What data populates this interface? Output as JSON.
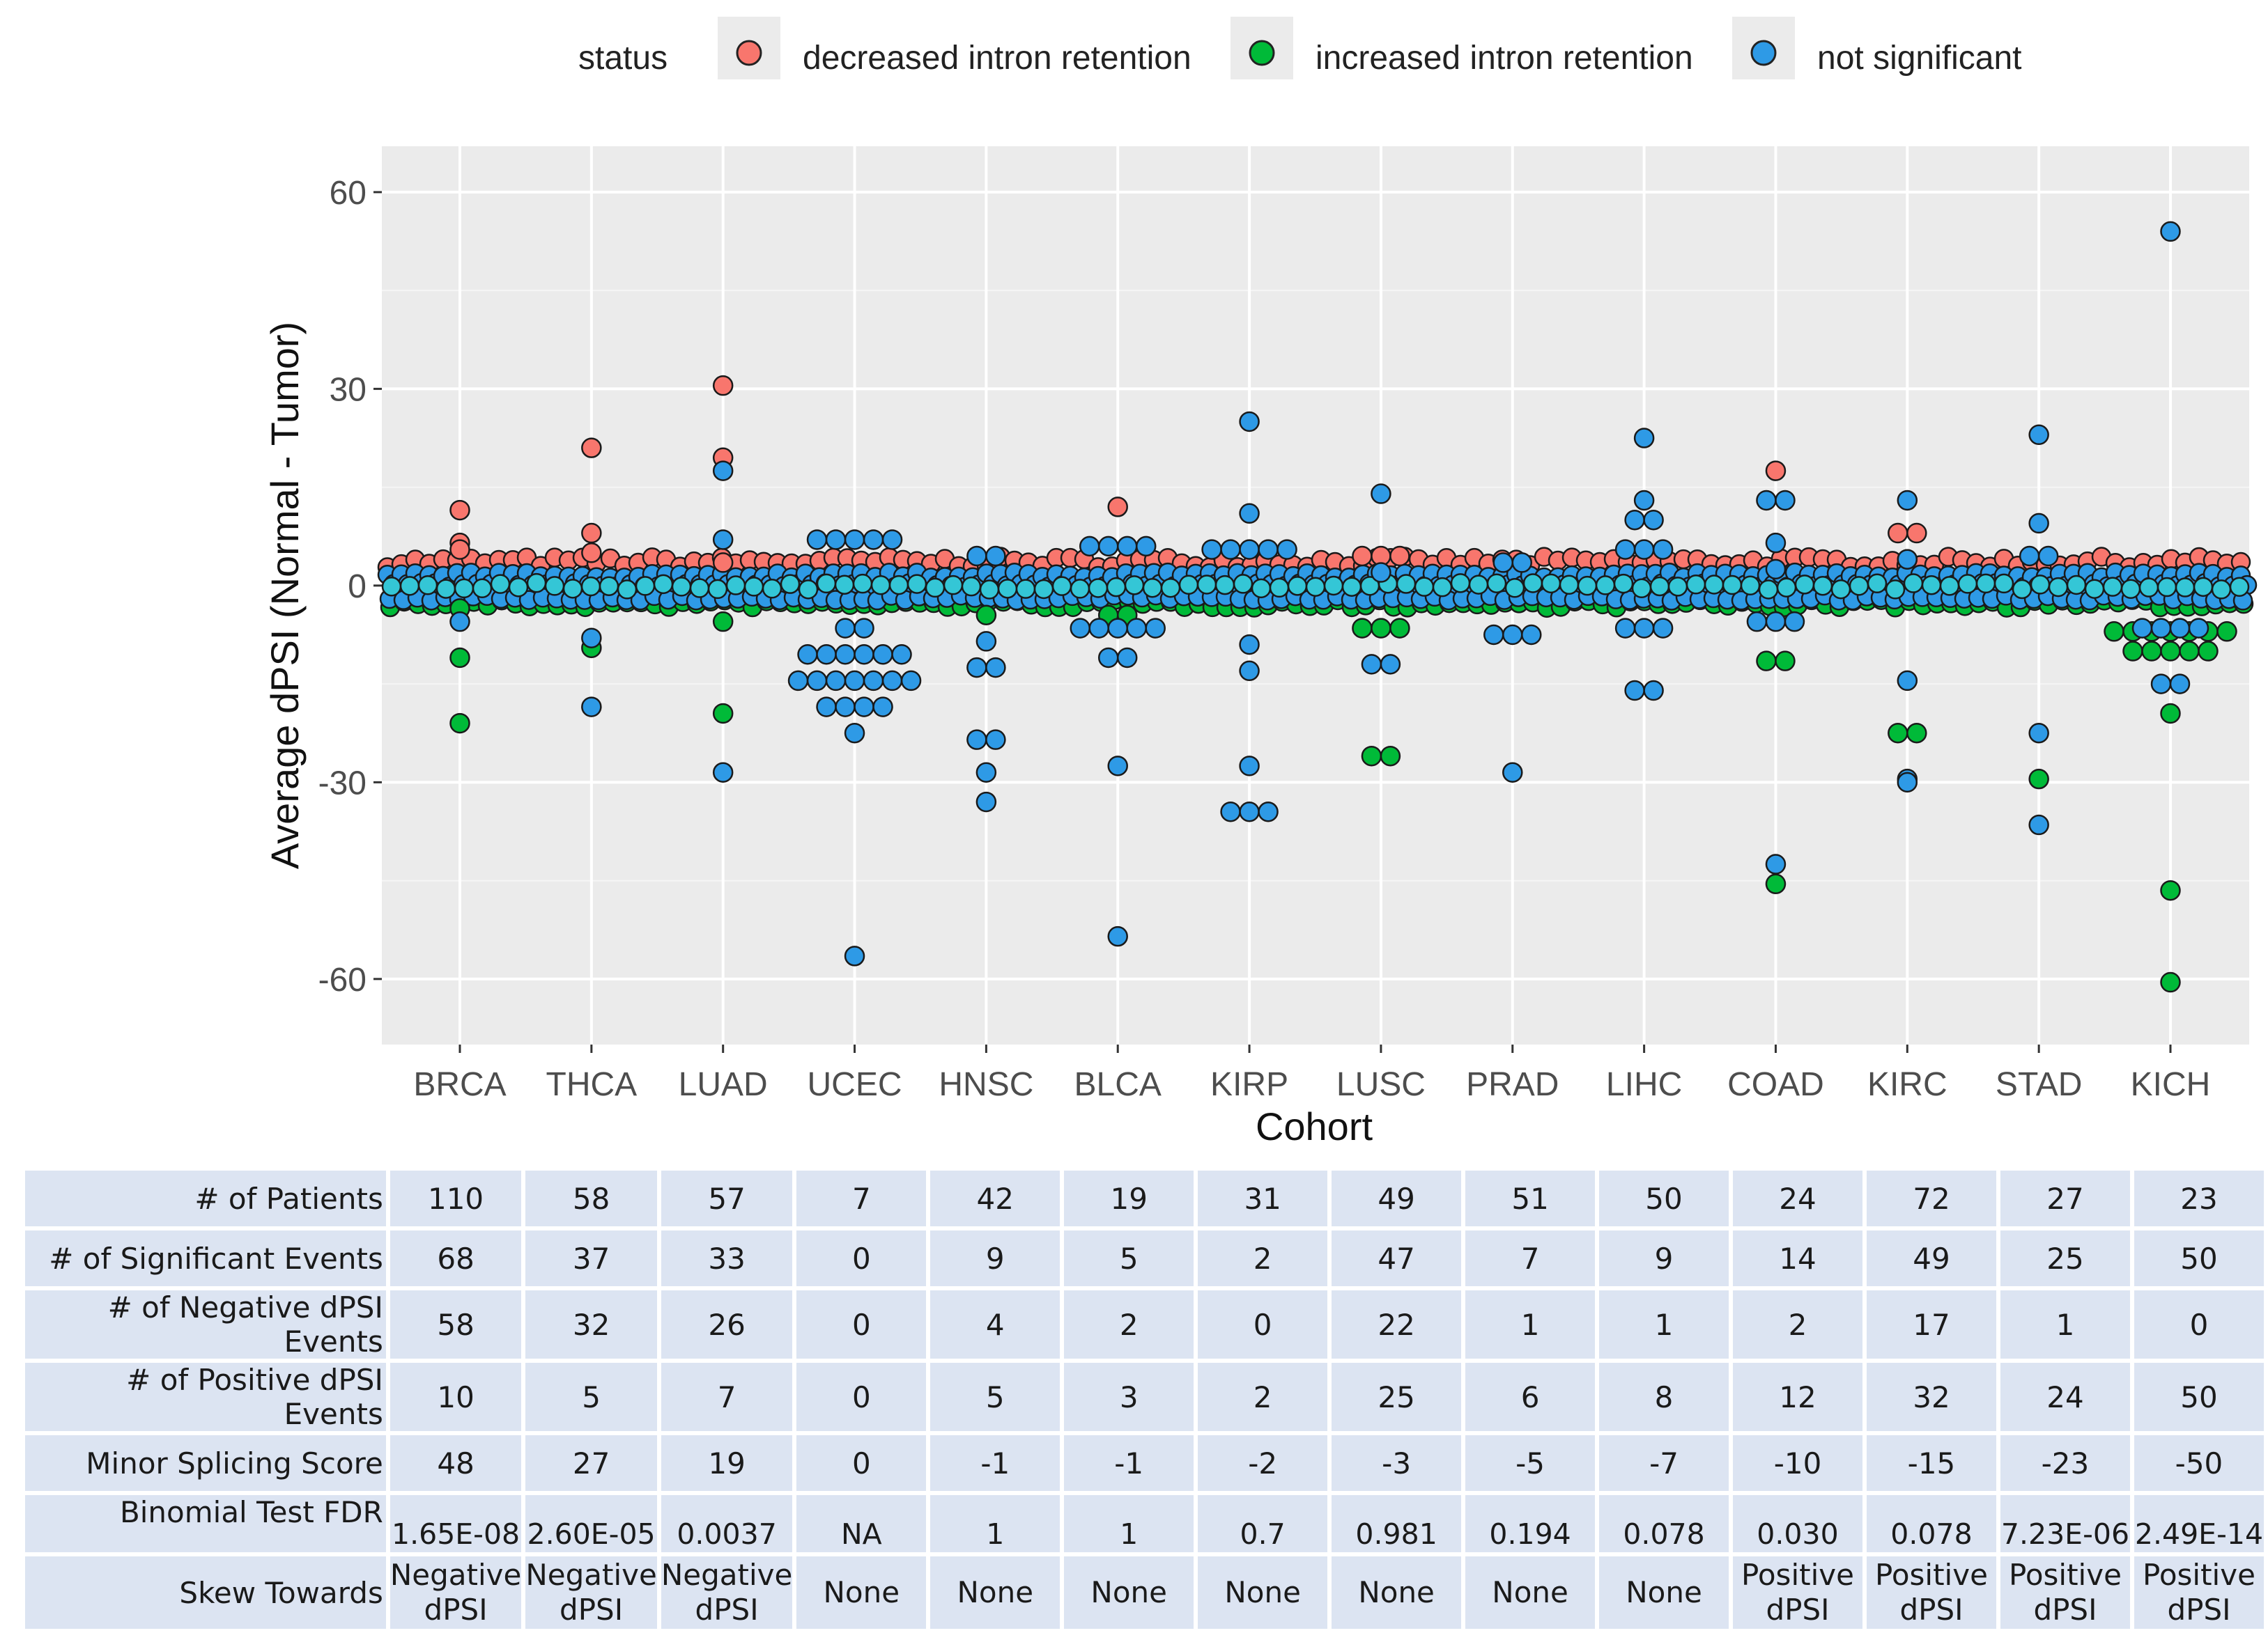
{
  "chart_data": {
    "type": "scatter",
    "subtype": "beeswarm",
    "xlabel": "Cohort",
    "ylabel": "Average dPSI (Normal - Tumor)",
    "ylim": [
      -70,
      67
    ],
    "yticks": [
      -60,
      -30,
      0,
      30,
      60
    ],
    "grid": true,
    "legend_position": "top",
    "legend": {
      "title": "status",
      "entries": [
        {
          "key": "decreased",
          "label": "decreased intron retention",
          "color": "#f8766d"
        },
        {
          "key": "increased",
          "label": "increased intron retention",
          "color": "#00ba38"
        },
        {
          "key": "ns",
          "label": "not significant",
          "color": "#2e9ae6"
        }
      ]
    },
    "categories": [
      "BRCA",
      "THCA",
      "LUAD",
      "UCEC",
      "HNSC",
      "BLCA",
      "KIRP",
      "LUSC",
      "PRAD",
      "LIHC",
      "COAD",
      "KIRC",
      "STAD",
      "KICH"
    ],
    "outliers": [
      {
        "cohort": "BRCA",
        "status": "decreased",
        "dpsi": [
          11.5,
          6.5,
          5.5
        ]
      },
      {
        "cohort": "BRCA",
        "status": "increased",
        "dpsi": [
          -3.5,
          -11,
          -21
        ]
      },
      {
        "cohort": "BRCA",
        "status": "ns",
        "dpsi": [
          -5.5
        ]
      },
      {
        "cohort": "THCA",
        "status": "decreased",
        "dpsi": [
          21,
          8,
          5
        ]
      },
      {
        "cohort": "THCA",
        "status": "increased",
        "dpsi": [
          -9.5
        ]
      },
      {
        "cohort": "THCA",
        "status": "ns",
        "dpsi": [
          -8,
          -18.5
        ]
      },
      {
        "cohort": "LUAD",
        "status": "decreased",
        "dpsi": [
          30.5,
          19.5,
          3.5
        ]
      },
      {
        "cohort": "LUAD",
        "status": "increased",
        "dpsi": [
          -5.5,
          -19.5
        ]
      },
      {
        "cohort": "LUAD",
        "status": "ns",
        "dpsi": [
          17.5,
          7,
          -28.5
        ]
      },
      {
        "cohort": "UCEC",
        "status": "ns",
        "dpsi": [
          7,
          7,
          7,
          7,
          7,
          -6.5,
          -6.5,
          -10.5,
          -10.5,
          -10.5,
          -10.5,
          -10.5,
          -10.5,
          -14.5,
          -14.5,
          -14.5,
          -14.5,
          -14.5,
          -14.5,
          -14.5,
          -18.5,
          -18.5,
          -18.5,
          -18.5,
          -22.5,
          -56.5
        ]
      },
      {
        "cohort": "HNSC",
        "status": "increased",
        "dpsi": [
          -4.5
        ]
      },
      {
        "cohort": "HNSC",
        "status": "ns",
        "dpsi": [
          4.5,
          4.5,
          -8.5,
          -12.5,
          -12.5,
          -23.5,
          -23.5,
          -28.5,
          -33
        ]
      },
      {
        "cohort": "BLCA",
        "status": "decreased",
        "dpsi": [
          12
        ]
      },
      {
        "cohort": "BLCA",
        "status": "increased",
        "dpsi": [
          -4.5,
          -4.5
        ]
      },
      {
        "cohort": "BLCA",
        "status": "ns",
        "dpsi": [
          6,
          6,
          6,
          6,
          -6.5,
          -6.5,
          -6.5,
          -6.5,
          -6.5,
          -11,
          -11,
          -27.5,
          -53.5
        ]
      },
      {
        "cohort": "KIRP",
        "status": "ns",
        "dpsi": [
          25,
          11,
          5.5,
          5.5,
          5.5,
          5.5,
          5.5,
          -9,
          -13,
          -27.5,
          -34.5,
          -34.5,
          -34.5
        ]
      },
      {
        "cohort": "LUSC",
        "status": "decreased",
        "dpsi": [
          4.5,
          4.5,
          4.5
        ]
      },
      {
        "cohort": "LUSC",
        "status": "increased",
        "dpsi": [
          -6.5,
          -6.5,
          -6.5,
          -26,
          -26
        ]
      },
      {
        "cohort": "LUSC",
        "status": "ns",
        "dpsi": [
          14,
          2,
          -12,
          -12
        ]
      },
      {
        "cohort": "PRAD",
        "status": "ns",
        "dpsi": [
          3.5,
          3.5,
          -7.5,
          -7.5,
          -7.5,
          -28.5
        ]
      },
      {
        "cohort": "LIHC",
        "status": "ns",
        "dpsi": [
          22.5,
          13,
          10,
          10,
          5.5,
          5.5,
          5.5,
          -6.5,
          -6.5,
          -6.5,
          -16,
          -16
        ]
      },
      {
        "cohort": "COAD",
        "status": "decreased",
        "dpsi": [
          17.5
        ]
      },
      {
        "cohort": "COAD",
        "status": "increased",
        "dpsi": [
          -11.5,
          -11.5,
          -45.5
        ]
      },
      {
        "cohort": "COAD",
        "status": "ns",
        "dpsi": [
          13,
          13,
          6.5,
          2.5,
          -5.5,
          -5.5,
          -5.5,
          -42.5
        ]
      },
      {
        "cohort": "KIRC",
        "status": "decreased",
        "dpsi": [
          8,
          8,
          4
        ]
      },
      {
        "cohort": "KIRC",
        "status": "increased",
        "dpsi": [
          -22.5,
          -22.5
        ]
      },
      {
        "cohort": "KIRC",
        "status": "ns",
        "dpsi": [
          13,
          4,
          -14.5,
          -29.5,
          -30
        ]
      },
      {
        "cohort": "STAD",
        "status": "increased",
        "dpsi": [
          -29.5
        ]
      },
      {
        "cohort": "STAD",
        "status": "ns",
        "dpsi": [
          23,
          9.5,
          4.5,
          4.5,
          -22.5,
          -36.5
        ]
      },
      {
        "cohort": "KICH",
        "status": "increased",
        "dpsi": [
          -7,
          -7,
          -7,
          -7,
          -7,
          -7,
          -7,
          -10,
          -10,
          -10,
          -10,
          -10,
          -19.5,
          -46.5,
          -60.5
        ]
      },
      {
        "cohort": "KICH",
        "status": "ns",
        "dpsi": [
          54,
          -6.5,
          -6.5,
          -6.5,
          -6.5,
          -15,
          -15
        ]
      }
    ]
  },
  "table": {
    "rows": [
      {
        "label": "# of Patients",
        "values": [
          "110",
          "58",
          "57",
          "7",
          "42",
          "19",
          "31",
          "49",
          "51",
          "50",
          "24",
          "72",
          "27",
          "23"
        ]
      },
      {
        "label": "# of Significant Events",
        "values": [
          "68",
          "37",
          "33",
          "0",
          "9",
          "5",
          "2",
          "47",
          "7",
          "9",
          "14",
          "49",
          "25",
          "50"
        ]
      },
      {
        "label": "# of Negative dPSI Events",
        "values": [
          "58",
          "32",
          "26",
          "0",
          "4",
          "2",
          "0",
          "22",
          "1",
          "1",
          "2",
          "17",
          "1",
          "0"
        ]
      },
      {
        "label": "# of Positive dPSI Events",
        "values": [
          "10",
          "5",
          "7",
          "0",
          "5",
          "3",
          "2",
          "25",
          "6",
          "8",
          "12",
          "32",
          "24",
          "50"
        ]
      },
      {
        "label": "Minor Splicing Score",
        "values": [
          "48",
          "27",
          "19",
          "0",
          "-1",
          "-1",
          "-2",
          "-3",
          "-5",
          "-7",
          "-10",
          "-15",
          "-23",
          "-50"
        ]
      },
      {
        "label": "Binomial Test FDR",
        "values": [
          "1.65E-08",
          "2.60E-05",
          "0.0037",
          "NA",
          "1",
          "1",
          "0.7",
          "0.981",
          "0.194",
          "0.078",
          "0.030",
          "0.078",
          "7.23E-06",
          "2.49E-14"
        ]
      }
    ],
    "skew": {
      "label": "Skew Towards",
      "values": [
        [
          "Negative",
          "dPSI"
        ],
        [
          "Negative",
          "dPSI"
        ],
        [
          "Negative",
          "dPSI"
        ],
        [
          "None"
        ],
        [
          "None"
        ],
        [
          "None"
        ],
        [
          "None"
        ],
        [
          "None"
        ],
        [
          "None"
        ],
        [
          "None"
        ],
        [
          "Positive",
          "dPSI"
        ],
        [
          "Positive",
          "dPSI"
        ],
        [
          "Positive",
          "dPSI"
        ],
        [
          "Positive",
          "dPSI"
        ]
      ]
    }
  }
}
